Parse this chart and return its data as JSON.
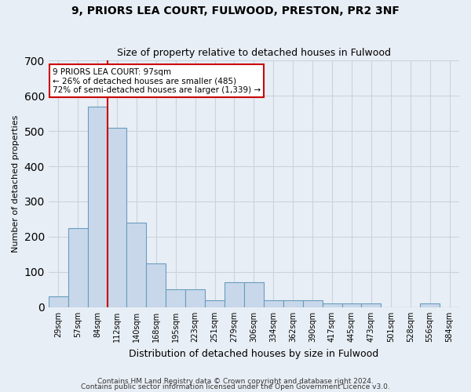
{
  "title1": "9, PRIORS LEA COURT, FULWOOD, PRESTON, PR2 3NF",
  "title2": "Size of property relative to detached houses in Fulwood",
  "xlabel": "Distribution of detached houses by size in Fulwood",
  "ylabel": "Number of detached properties",
  "bar_labels": [
    "29sqm",
    "57sqm",
    "84sqm",
    "112sqm",
    "140sqm",
    "168sqm",
    "195sqm",
    "223sqm",
    "251sqm",
    "279sqm",
    "306sqm",
    "334sqm",
    "362sqm",
    "390sqm",
    "417sqm",
    "445sqm",
    "473sqm",
    "501sqm",
    "528sqm",
    "556sqm",
    "584sqm"
  ],
  "bar_values": [
    30,
    225,
    570,
    510,
    240,
    125,
    50,
    50,
    20,
    70,
    70,
    20,
    20,
    20,
    10,
    10,
    10,
    0,
    0,
    10,
    0
  ],
  "bar_color": "#c8d8ea",
  "bar_edge_color": "#6a9cbf",
  "vline_color": "#cc0000",
  "annotation_text": "9 PRIORS LEA COURT: 97sqm\n← 26% of detached houses are smaller (485)\n72% of semi-detached houses are larger (1,339) →",
  "annotation_box_color": "#ffffff",
  "annotation_box_edge": "#cc0000",
  "ylim": [
    0,
    700
  ],
  "yticks": [
    0,
    100,
    200,
    300,
    400,
    500,
    600,
    700
  ],
  "footer1": "Contains HM Land Registry data © Crown copyright and database right 2024.",
  "footer2": "Contains public sector information licensed under the Open Government Licence v3.0.",
  "background_color": "#e8eef5",
  "grid_color": "#c8d4e0"
}
